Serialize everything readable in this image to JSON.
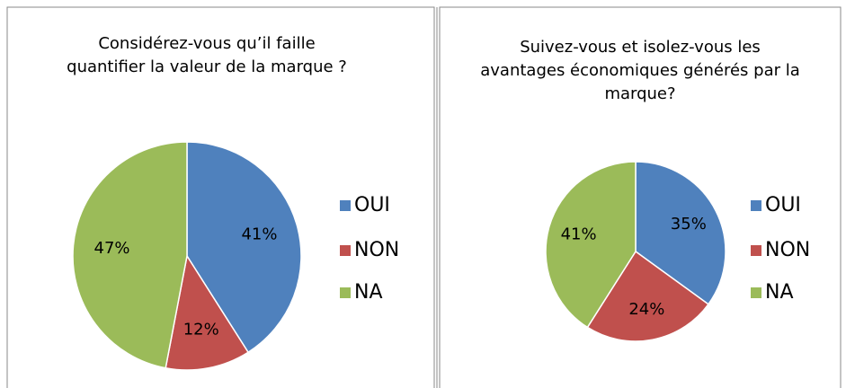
{
  "chart_data": [
    {
      "type": "pie",
      "title": "Considérez-vous qu’il faille quantifier la valeur de la marque ?",
      "categories": [
        "OUI",
        "NON",
        "NA"
      ],
      "values": [
        41,
        12,
        47
      ],
      "value_labels": [
        "41%",
        "12%",
        "47%"
      ],
      "colors": [
        "#4f81bd",
        "#c0504d",
        "#9bbb59"
      ]
    },
    {
      "type": "pie",
      "title": "Suivez-vous et isolez-vous les avantages économiques générés par la marque?",
      "categories": [
        "OUI",
        "NON",
        "NA"
      ],
      "values": [
        35,
        24,
        41
      ],
      "value_labels": [
        "35%",
        "24%",
        "41%"
      ],
      "colors": [
        "#4f81bd",
        "#c0504d",
        "#9bbb59"
      ]
    }
  ]
}
